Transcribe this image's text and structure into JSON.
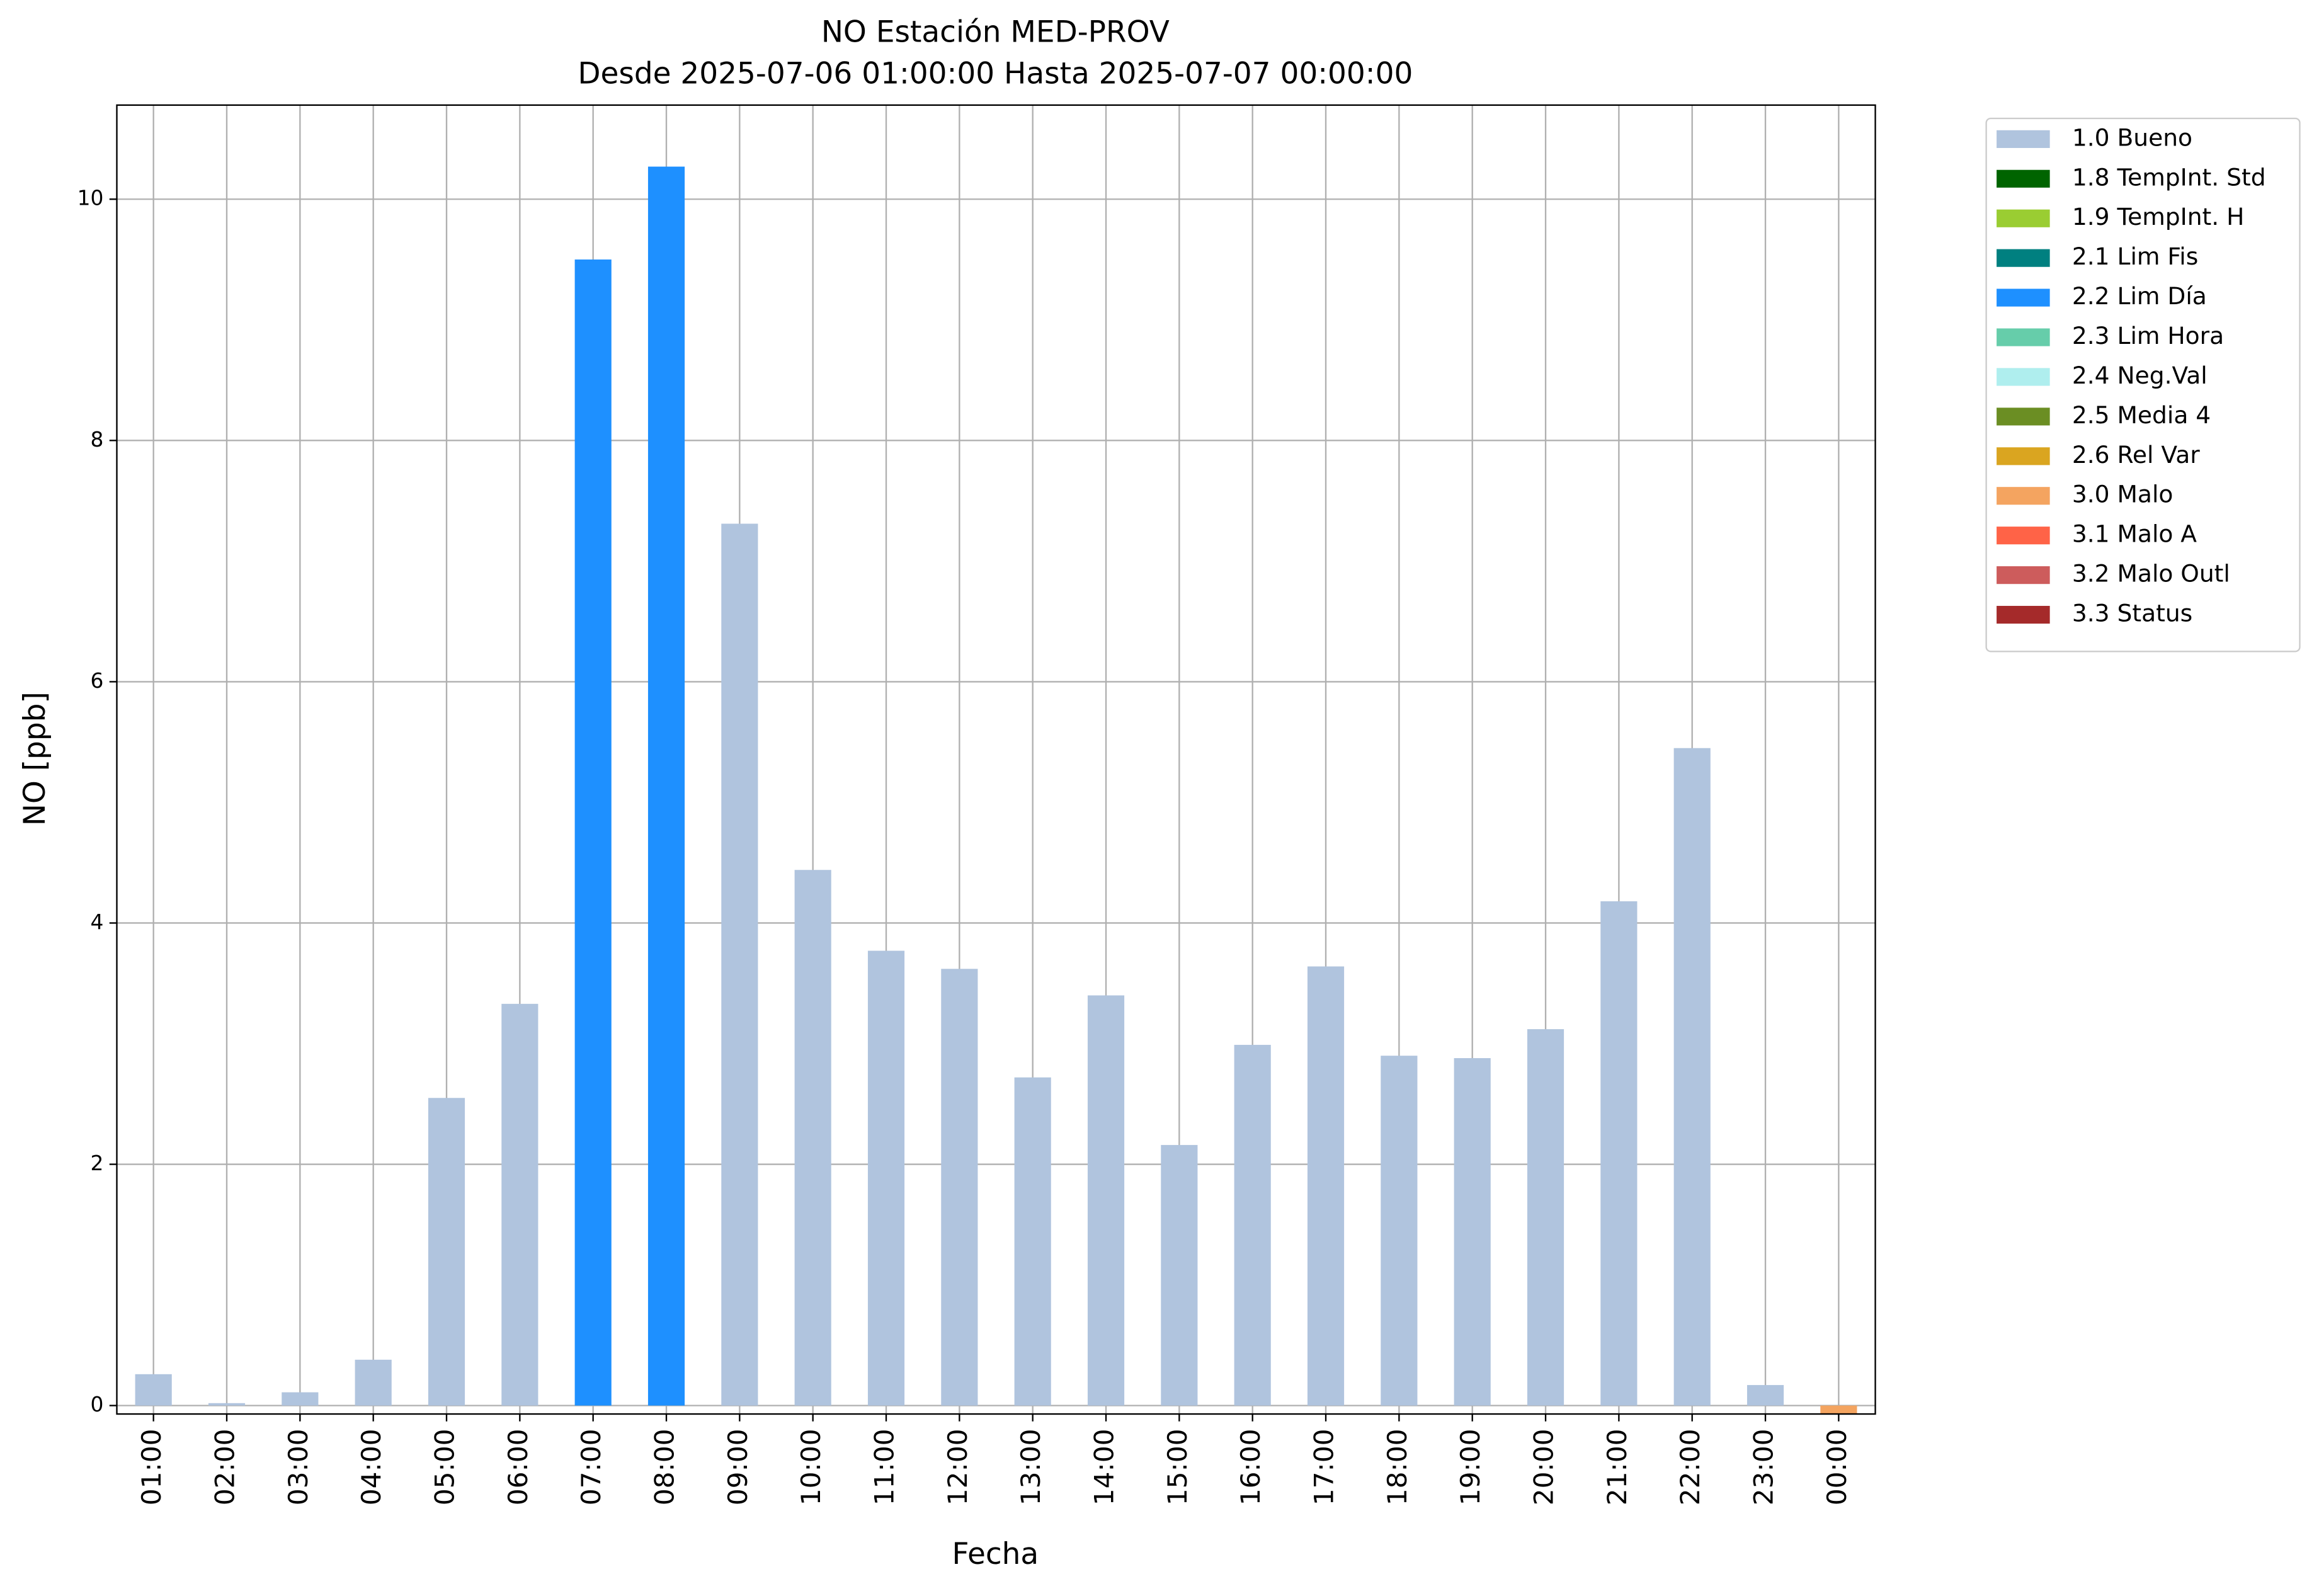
{
  "chart_data": {
    "type": "bar",
    "title": "NO Estación MED-PROV",
    "subtitle": "Desde 2025-07-06 01:00:00 Hasta 2025-07-07 00:00:00",
    "x_label": "Fecha",
    "y_label": "NO [ppb]",
    "categories": [
      "01:00",
      "02:00",
      "03:00",
      "04:00",
      "05:00",
      "06:00",
      "07:00",
      "08:00",
      "09:00",
      "10:00",
      "11:00",
      "12:00",
      "13:00",
      "14:00",
      "15:00",
      "16:00",
      "17:00",
      "18:00",
      "19:00",
      "20:00",
      "21:00",
      "22:00",
      "23:00",
      "00:00"
    ],
    "series": [
      {
        "name": "1.0 Bueno",
        "color": "#b0c4de",
        "values": [
          0.26,
          0.02,
          0.11,
          0.38,
          2.55,
          3.33,
          null,
          null,
          7.31,
          4.44,
          3.77,
          3.62,
          2.72,
          3.4,
          2.16,
          2.99,
          3.64,
          2.9,
          2.88,
          3.12,
          4.18,
          5.45,
          0.17,
          null
        ]
      },
      {
        "name": "1.8 TempInt. Std",
        "color": "#006400",
        "values": [
          null,
          null,
          null,
          null,
          null,
          null,
          null,
          null,
          null,
          null,
          null,
          null,
          null,
          null,
          null,
          null,
          null,
          null,
          null,
          null,
          null,
          null,
          null,
          null
        ]
      },
      {
        "name": "1.9 TempInt. H",
        "color": "#9acd32",
        "values": [
          null,
          null,
          null,
          null,
          null,
          null,
          null,
          null,
          null,
          null,
          null,
          null,
          null,
          null,
          null,
          null,
          null,
          null,
          null,
          null,
          null,
          null,
          null,
          null
        ]
      },
      {
        "name": "2.1 Lim Fis",
        "color": "#008080",
        "values": [
          null,
          null,
          null,
          null,
          null,
          null,
          null,
          null,
          null,
          null,
          null,
          null,
          null,
          null,
          null,
          null,
          null,
          null,
          null,
          null,
          null,
          null,
          null,
          null
        ]
      },
      {
        "name": "2.2 Lim Día",
        "color": "#1e90ff",
        "values": [
          null,
          null,
          null,
          null,
          null,
          null,
          9.5,
          10.27,
          null,
          null,
          null,
          null,
          null,
          null,
          null,
          null,
          null,
          null,
          null,
          null,
          null,
          null,
          null,
          null
        ]
      },
      {
        "name": "2.3 Lim Hora",
        "color": "#66cdaa",
        "values": [
          null,
          null,
          null,
          null,
          null,
          null,
          null,
          null,
          null,
          null,
          null,
          null,
          null,
          null,
          null,
          null,
          null,
          null,
          null,
          null,
          null,
          null,
          null,
          null
        ]
      },
      {
        "name": "2.4 Neg.Val",
        "color": "#afeeee",
        "values": [
          null,
          null,
          null,
          null,
          null,
          null,
          null,
          null,
          null,
          null,
          null,
          null,
          null,
          null,
          null,
          null,
          null,
          null,
          null,
          null,
          null,
          null,
          null,
          null
        ]
      },
      {
        "name": "2.5 Media 4",
        "color": "#6b8e23",
        "values": [
          null,
          null,
          null,
          null,
          null,
          null,
          null,
          null,
          null,
          null,
          null,
          null,
          null,
          null,
          null,
          null,
          null,
          null,
          null,
          null,
          null,
          null,
          null,
          null
        ]
      },
      {
        "name": "2.6 Rel Var",
        "color": "#daa520",
        "values": [
          null,
          null,
          null,
          null,
          null,
          null,
          null,
          null,
          null,
          null,
          null,
          null,
          null,
          null,
          null,
          null,
          null,
          null,
          null,
          null,
          null,
          null,
          null,
          null
        ]
      },
      {
        "name": "3.0 Malo",
        "color": "#f4a460",
        "values": [
          null,
          null,
          null,
          null,
          null,
          null,
          null,
          null,
          null,
          null,
          null,
          null,
          null,
          null,
          null,
          null,
          null,
          null,
          null,
          null,
          null,
          null,
          null,
          -0.07
        ]
      },
      {
        "name": "3.1 Malo A",
        "color": "#ff6347",
        "values": [
          null,
          null,
          null,
          null,
          null,
          null,
          null,
          null,
          null,
          null,
          null,
          null,
          null,
          null,
          null,
          null,
          null,
          null,
          null,
          null,
          null,
          null,
          null,
          null
        ]
      },
      {
        "name": "3.2 Malo Outl",
        "color": "#cd5c5c",
        "values": [
          null,
          null,
          null,
          null,
          null,
          null,
          null,
          null,
          null,
          null,
          null,
          null,
          null,
          null,
          null,
          null,
          null,
          null,
          null,
          null,
          null,
          null,
          null,
          null
        ]
      },
      {
        "name": "3.3 Status",
        "color": "#a52a2a",
        "values": [
          null,
          null,
          null,
          null,
          null,
          null,
          null,
          null,
          null,
          null,
          null,
          null,
          null,
          null,
          null,
          null,
          null,
          null,
          null,
          null,
          null,
          null,
          null,
          null
        ]
      }
    ],
    "ylim": [
      -0.07,
      10.78
    ],
    "yticks": [
      0,
      2,
      4,
      6,
      8,
      10
    ],
    "grid": true,
    "legend": "outside-upper-right"
  }
}
